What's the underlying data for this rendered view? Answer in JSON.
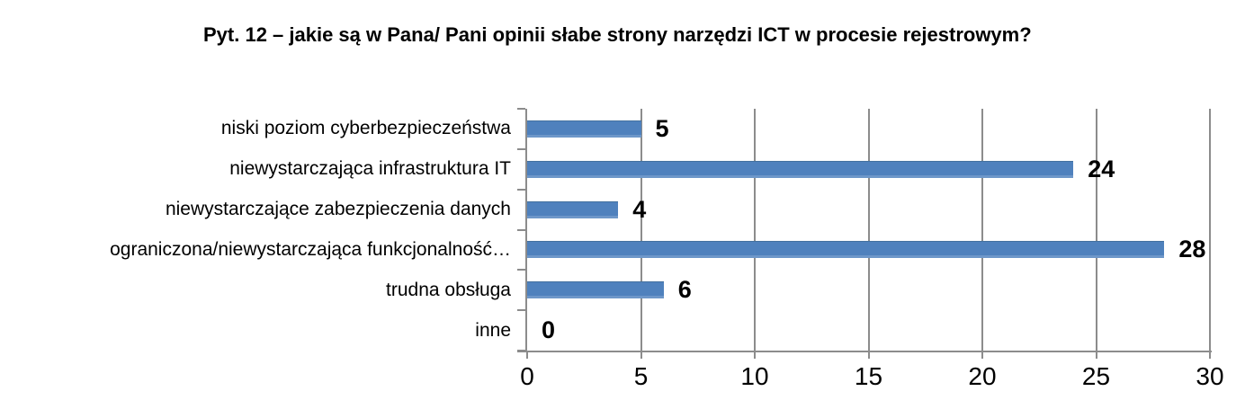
{
  "chart_data": {
    "type": "bar",
    "orientation": "horizontal",
    "title": "Pyt. 12 – jakie są w Pana/ Pani opinii słabe strony narzędzi ICT w procesie rejestrowym?",
    "categories": [
      "niski poziom cyberbezpieczeństwa",
      "niewystarczająca infrastruktura IT",
      "niewystarczające zabezpieczenia danych",
      "ograniczona/niewystarczająca funkcjonalność…",
      "trudna obsługa",
      "inne"
    ],
    "values": [
      5,
      24,
      4,
      28,
      6,
      0
    ],
    "value_labels": [
      "5",
      "24",
      "4",
      "28",
      "6",
      "0"
    ],
    "x_ticks": [
      "0",
      "5",
      "10",
      "15",
      "20",
      "25",
      "30"
    ],
    "x_tick_values": [
      0,
      5,
      10,
      15,
      20,
      25,
      30
    ],
    "xlim": [
      0,
      30
    ],
    "xlabel": "",
    "ylabel": "",
    "grid": true,
    "legend": false,
    "colors": {
      "bar": "#4F81BD",
      "axis": "#8C8C8C",
      "gridline": "#8C8C8C",
      "text": "#000000"
    }
  }
}
